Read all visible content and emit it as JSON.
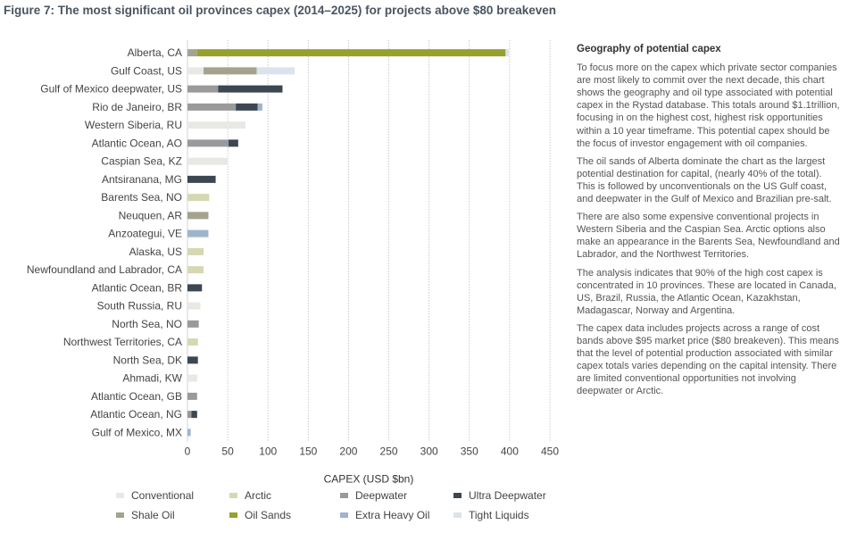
{
  "figure_title": "Figure 7: The most significant oil provinces capex (2014–2025) for projects above $80 breakeven",
  "side_panel": {
    "title": "Geography of potential capex",
    "paragraphs": [
      "To focus more on the capex which private sector companies are most likely to commit over the next decade, this chart shows the geography and oil type associated with potential capex in the Rystad database. This totals around $1.1trillion, focusing in on the highest cost, highest risk opportunities within a 10 year timeframe. This potential capex should be the focus of investor engagement with oil companies.",
      "The oil sands of Alberta dominate the chart as the largest potential destination for capital, (nearly 40% of the total). This is followed by unconventionals on the US Gulf coast, and deepwater in the Gulf of Mexico and Brazilian pre-salt.",
      "There are also some expensive conventional projects in Western Siberia and the Caspian Sea. Arctic options also make an appearance in the Barents Sea, Newfoundland and Labrador, and the Northwest Territories.",
      "The analysis indicates that 90% of the high cost capex is concentrated in 10 provinces. These are located in Canada, US, Brazil, Russia, the Atlantic Ocean, Kazakhstan, Madagascar, Norway and Argentina.",
      "The capex data includes projects across a range of cost bands above $95 market price ($80 breakeven). This means that the level of potential production associated with similar capex totals varies depending on the capital intensity. There are limited conventional opportunities not involving deepwater or Arctic."
    ]
  },
  "colors": {
    "Conventional": "#e9e9e4",
    "Arctic": "#d6d8b2",
    "Deepwater": "#9a9a9c",
    "Ultra Deepwater": "#3c4752",
    "Shale Oil": "#a3a38e",
    "Oil Sands": "#98a12b",
    "Extra Heavy Oil": "#9db5cc",
    "Tight Liquids": "#dde3ec"
  },
  "chart_data": {
    "type": "bar",
    "orientation": "horizontal",
    "stacked": true,
    "xlabel": "CAPEX (USD $bn)",
    "xlim": [
      0,
      450
    ],
    "xticks": [
      0,
      50,
      100,
      150,
      200,
      250,
      300,
      350,
      400,
      450
    ],
    "grid": "vertical dotted",
    "legend_position": "bottom",
    "legend": [
      "Conventional",
      "Arctic",
      "Deepwater",
      "Ultra Deepwater",
      "Shale Oil",
      "Oil Sands",
      "Extra Heavy Oil",
      "Tight Liquids"
    ],
    "categories": [
      "Alberta, CA",
      "Gulf Coast, US",
      "Gulf of Mexico deepwater, US",
      "Rio de Janeiro, BR",
      "Western Siberia, RU",
      "Atlantic Ocean, AO",
      "Caspian Sea, KZ",
      "Antsiranana, MG",
      "Barents Sea, NO",
      "Neuquen, AR",
      "Anzoategui, VE",
      "Alaska, US",
      "Newfoundland and Labrador, CA",
      "Atlantic Ocean, BR",
      "South Russia, RU",
      "North Sea, NO",
      "Northwest Territories, CA",
      "North Sea, DK",
      "Ahmadi, KW",
      "Atlantic Ocean, GB",
      "Atlantic Ocean, NG",
      "Gulf of Mexico, MX"
    ],
    "bars": [
      [
        {
          "type": "Deepwater",
          "value": 2
        },
        {
          "type": "Shale Oil",
          "value": 10
        },
        {
          "type": "Oil Sands",
          "value": 383
        },
        {
          "type": "Tight Liquids",
          "value": 4
        }
      ],
      [
        {
          "type": "Conventional",
          "value": 20
        },
        {
          "type": "Shale Oil",
          "value": 66
        },
        {
          "type": "Tight Liquids",
          "value": 47
        }
      ],
      [
        {
          "type": "Deepwater",
          "value": 38
        },
        {
          "type": "Ultra Deepwater",
          "value": 80
        }
      ],
      [
        {
          "type": "Deepwater",
          "value": 60
        },
        {
          "type": "Ultra Deepwater",
          "value": 27
        },
        {
          "type": "Extra Heavy Oil",
          "value": 6
        }
      ],
      [
        {
          "type": "Conventional",
          "value": 72
        }
      ],
      [
        {
          "type": "Deepwater",
          "value": 51
        },
        {
          "type": "Ultra Deepwater",
          "value": 12
        }
      ],
      [
        {
          "type": "Conventional",
          "value": 50
        }
      ],
      [
        {
          "type": "Ultra Deepwater",
          "value": 35
        }
      ],
      [
        {
          "type": "Arctic",
          "value": 27
        }
      ],
      [
        {
          "type": "Shale Oil",
          "value": 26
        }
      ],
      [
        {
          "type": "Extra Heavy Oil",
          "value": 26
        }
      ],
      [
        {
          "type": "Arctic",
          "value": 20
        }
      ],
      [
        {
          "type": "Arctic",
          "value": 20
        }
      ],
      [
        {
          "type": "Ultra Deepwater",
          "value": 18
        }
      ],
      [
        {
          "type": "Conventional",
          "value": 16
        }
      ],
      [
        {
          "type": "Deepwater",
          "value": 14
        }
      ],
      [
        {
          "type": "Arctic",
          "value": 13
        }
      ],
      [
        {
          "type": "Ultra Deepwater",
          "value": 13
        }
      ],
      [
        {
          "type": "Conventional",
          "value": 12
        }
      ],
      [
        {
          "type": "Deepwater",
          "value": 12
        }
      ],
      [
        {
          "type": "Deepwater",
          "value": 5
        },
        {
          "type": "Ultra Deepwater",
          "value": 7
        }
      ],
      [
        {
          "type": "Extra Heavy Oil",
          "value": 4
        }
      ]
    ]
  }
}
